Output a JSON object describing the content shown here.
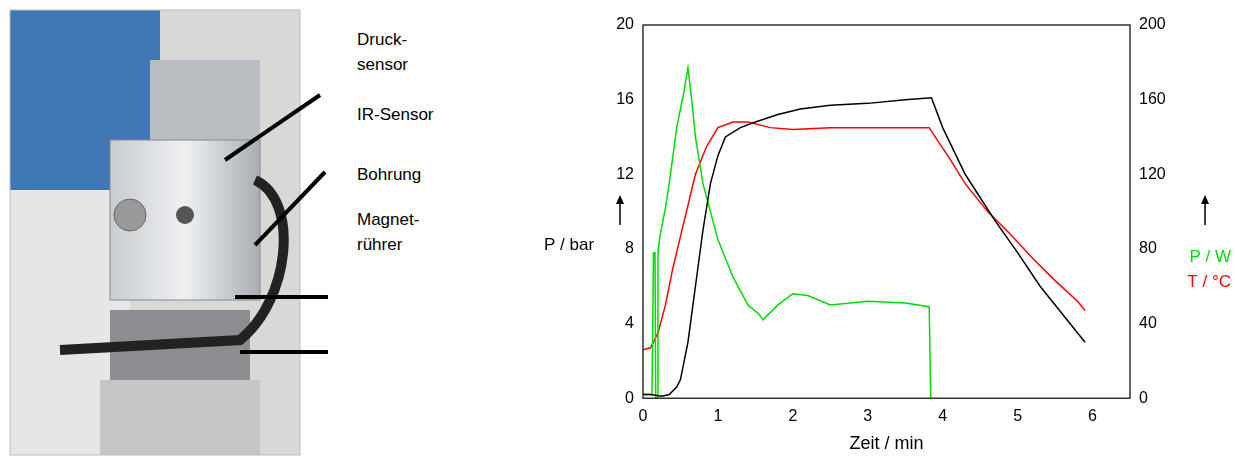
{
  "photo": {
    "labels": [
      [
        "Druck-",
        "sensor"
      ],
      [
        "IR-Sensor"
      ],
      [
        "Bohrung"
      ],
      [
        "Magnet-",
        "rührer"
      ]
    ]
  },
  "chart_data": {
    "type": "line",
    "x_label": "Zeit / min",
    "xlim": [
      0,
      6.5
    ],
    "xticks": [
      0,
      1,
      2,
      3,
      4,
      5,
      6
    ],
    "ylim": [
      0,
      20
    ],
    "yticks": [
      0,
      4,
      8,
      12,
      16,
      20
    ],
    "y2lim": [
      0,
      200
    ],
    "y2ticks": [
      0,
      40,
      80,
      120,
      160,
      200
    ],
    "grid": false,
    "series": [
      {
        "name": "P / bar",
        "color": "#000000",
        "axis": "y",
        "x": [
          0,
          0.1,
          0.25,
          0.35,
          0.45,
          0.5,
          0.6,
          0.7,
          0.8,
          0.9,
          1.0,
          1.1,
          1.3,
          1.5,
          1.8,
          2.1,
          2.5,
          3.0,
          3.5,
          3.85,
          4.0,
          4.3,
          4.7,
          5.0,
          5.3,
          5.6,
          5.9
        ],
        "values": [
          0.2,
          0.2,
          0.1,
          0.2,
          0.6,
          1,
          3,
          6,
          9,
          11.5,
          13,
          14,
          14.5,
          14.8,
          15.2,
          15.5,
          15.7,
          15.8,
          16,
          16.1,
          14.5,
          12,
          9.5,
          7.8,
          6,
          4.5,
          3
        ]
      },
      {
        "name": "P / W",
        "color": "#00dd00",
        "axis": "y2",
        "x": [
          0,
          0.12,
          0.14,
          0.16,
          0.17,
          0.19,
          0.2,
          0.22,
          0.25,
          0.3,
          0.35,
          0.4,
          0.45,
          0.5,
          0.55,
          0.6,
          0.65,
          0.7,
          0.8,
          0.9,
          1.0,
          1.2,
          1.4,
          1.55,
          1.6,
          1.8,
          2.0,
          2.2,
          2.5,
          3.0,
          3.5,
          3.82,
          3.84
        ],
        "values": [
          2,
          2,
          78,
          78,
          0,
          0,
          78,
          85,
          92,
          102,
          115,
          130,
          145,
          155,
          165,
          177,
          160,
          140,
          115,
          100,
          85,
          65,
          50,
          45,
          42,
          50,
          56,
          55,
          50,
          52,
          51,
          49,
          0
        ]
      },
      {
        "name": "T / °C",
        "color": "#ff0000",
        "axis": "y2",
        "x": [
          0,
          0.1,
          0.2,
          0.3,
          0.4,
          0.55,
          0.7,
          0.85,
          1.0,
          1.2,
          1.4,
          1.7,
          2.0,
          2.5,
          3.0,
          3.5,
          3.82,
          3.9,
          4.1,
          4.3,
          4.6,
          4.9,
          5.2,
          5.5,
          5.8,
          5.9
        ],
        "values": [
          26,
          27,
          35,
          50,
          70,
          95,
          120,
          135,
          145,
          148,
          148,
          145,
          144,
          145,
          145,
          145,
          145,
          140,
          128,
          115,
          100,
          88,
          75,
          63,
          52,
          47
        ]
      }
    ]
  }
}
